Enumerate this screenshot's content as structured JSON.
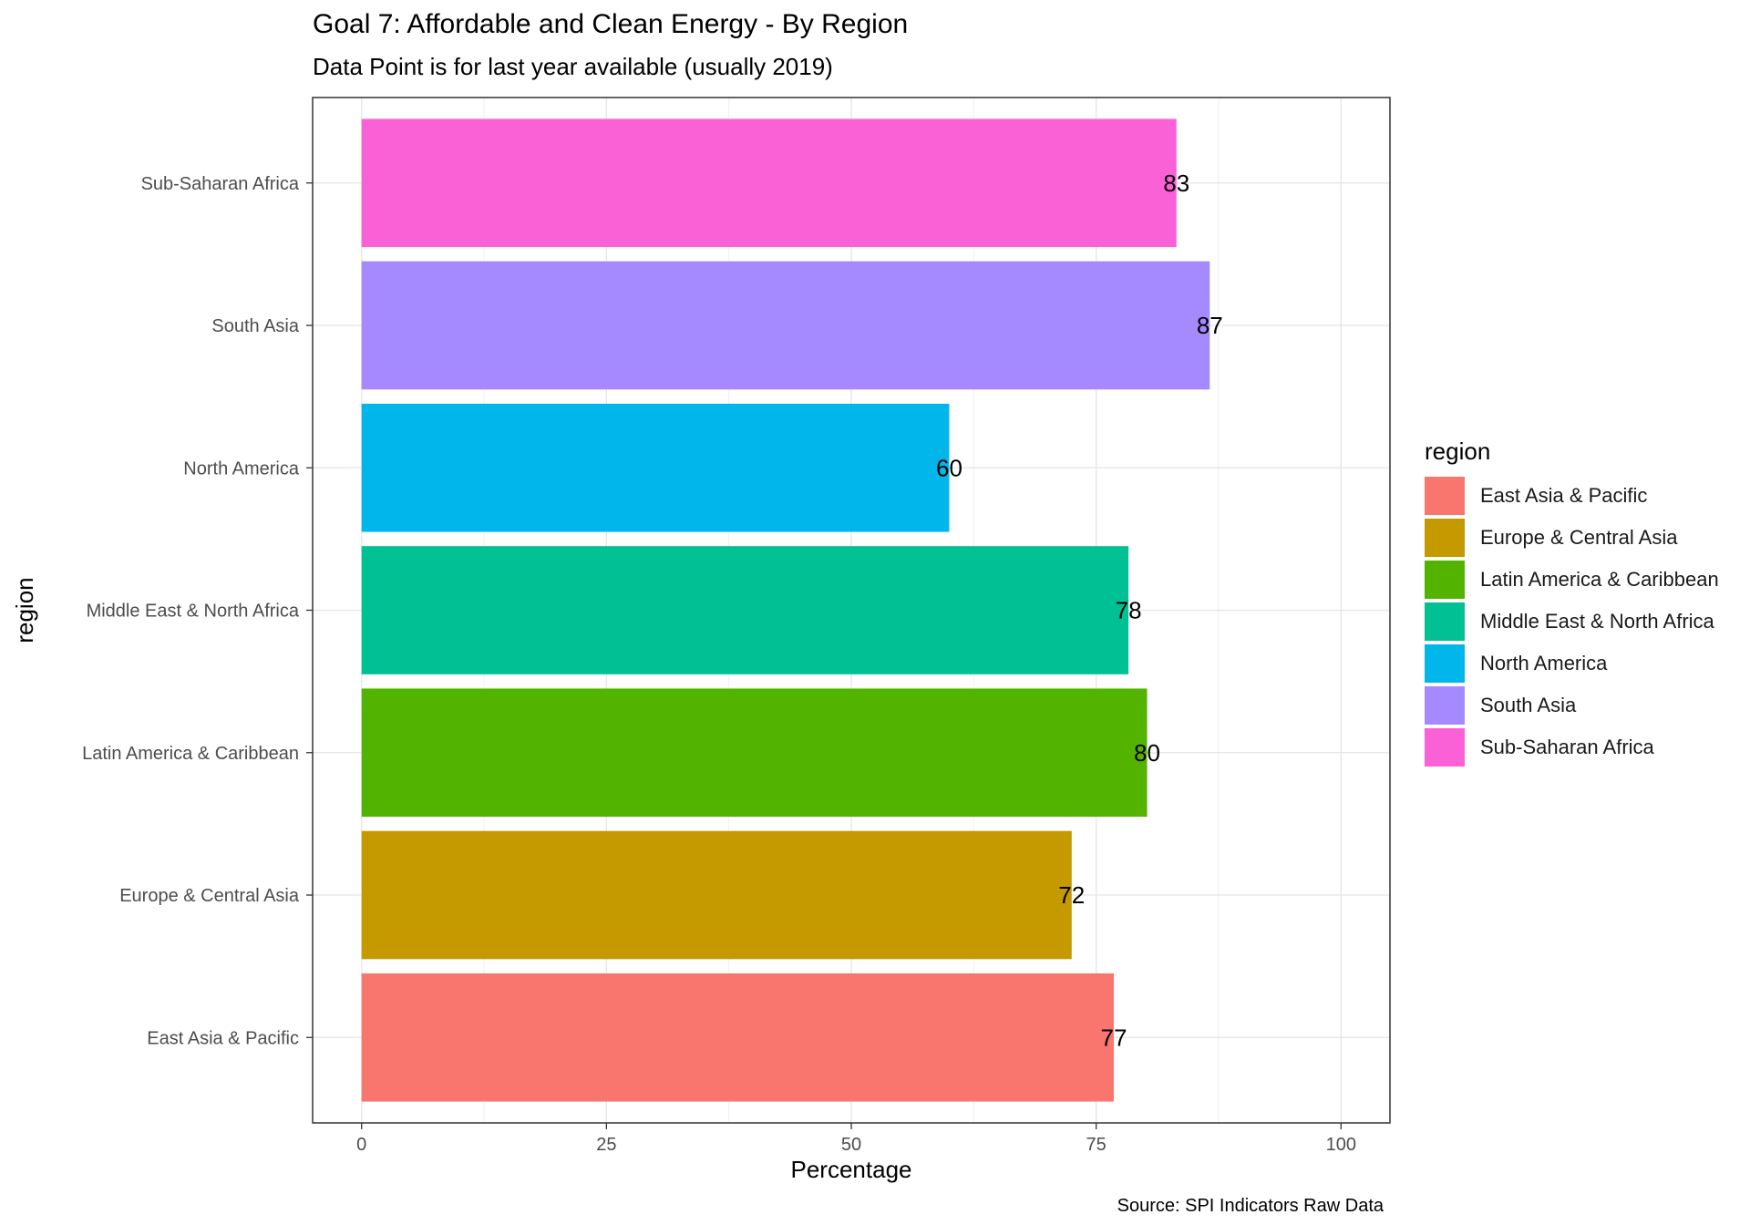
{
  "title": "Goal 7: Affordable and Clean Energy - By Region",
  "subtitle": "Data Point is for last year available (usually 2019)",
  "caption": "Source: SPI Indicators Raw Data",
  "chart_data": {
    "type": "bar",
    "orientation": "horizontal",
    "title": "Goal 7: Affordable and Clean Energy - By Region",
    "subtitle": "Data Point is for last year available (usually 2019)",
    "xlabel": "Percentage",
    "ylabel": "region",
    "xlim": [
      -5,
      105
    ],
    "xticks": [
      0,
      25,
      50,
      75,
      100
    ],
    "grid": true,
    "legend_title": "region",
    "legend_position": "right",
    "categories": [
      "East Asia & Pacific",
      "Europe & Central Asia",
      "Latin America & Caribbean",
      "Middle East & North Africa",
      "North America",
      "South Asia",
      "Sub-Saharan Africa"
    ],
    "values": [
      76.8,
      72.5,
      80.2,
      78.3,
      60.0,
      86.6,
      83.2
    ],
    "data_labels": [
      "77",
      "72",
      "80",
      "78",
      "60",
      "87",
      "83"
    ],
    "colors": [
      "#F8766D",
      "#C49A00",
      "#53B400",
      "#00C094",
      "#00B6EB",
      "#A58AFF",
      "#FB61D7"
    ]
  }
}
